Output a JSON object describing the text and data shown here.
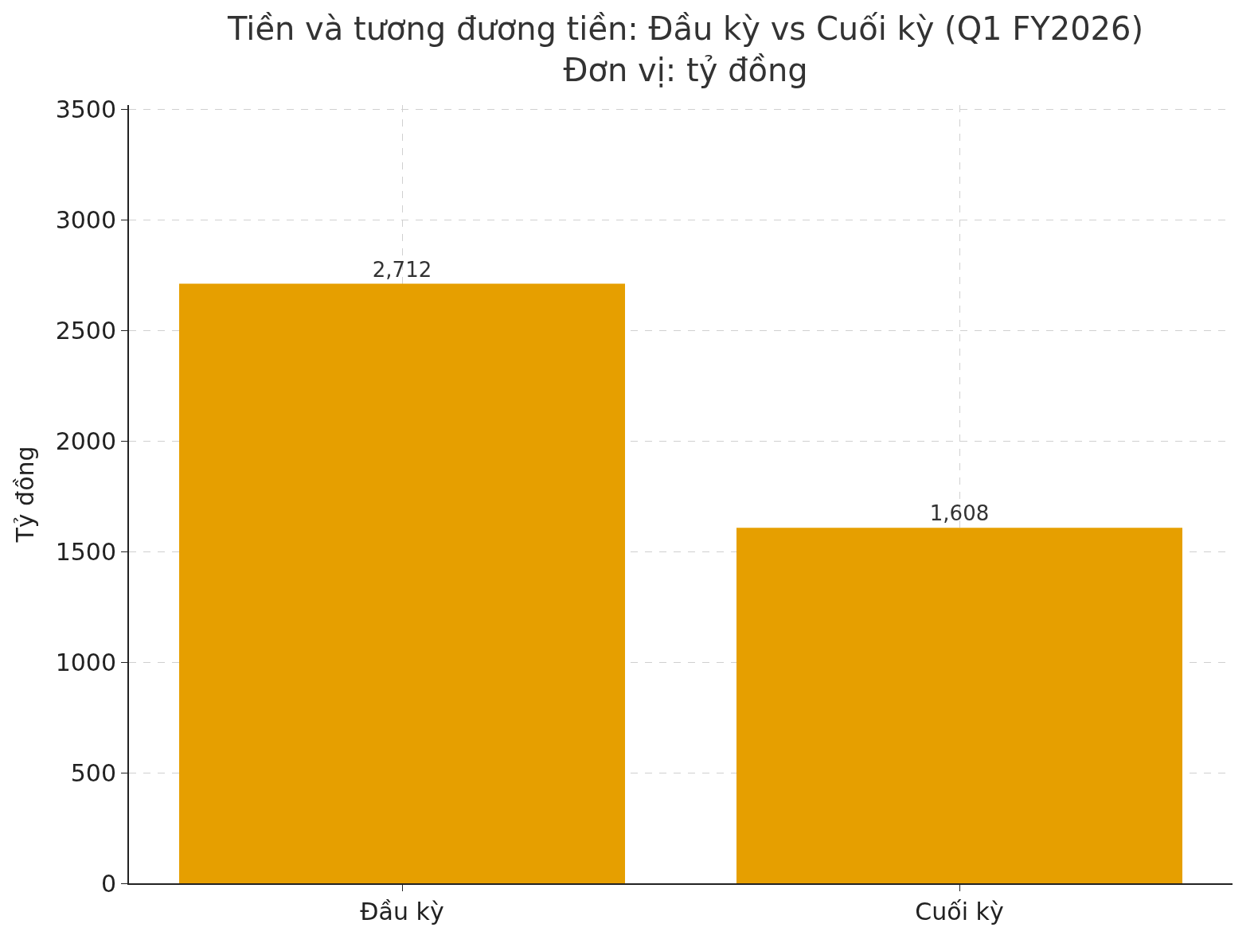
{
  "chart_data": {
    "type": "bar",
    "title": "Tiền và tương đương tiền: Đầu kỳ vs Cuối kỳ (Q1 FY2026)\nĐơn vị: tỷ đồng",
    "ylabel": "Tỷ đồng",
    "categories": [
      "Đầu kỳ",
      "Cuối kỳ"
    ],
    "values": [
      2712,
      1608
    ],
    "value_labels": [
      "2,712",
      "1,608"
    ],
    "color": "#e69f00",
    "ylim": [
      0,
      3520
    ],
    "yticks": [
      0,
      500,
      1000,
      1500,
      2000,
      2500,
      3000,
      3500
    ],
    "grid": true
  }
}
